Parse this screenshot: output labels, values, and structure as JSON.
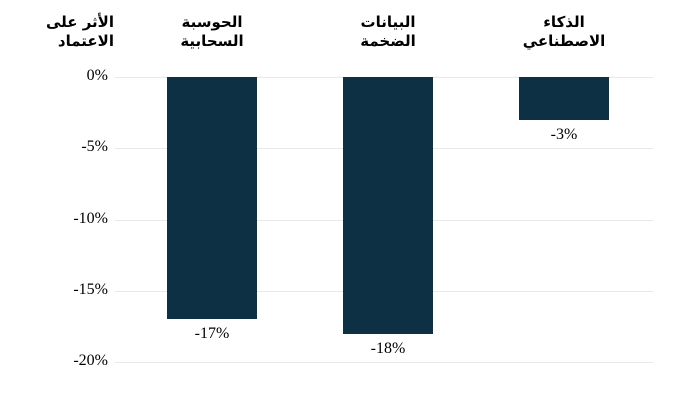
{
  "chart_data": {
    "type": "bar",
    "categories": [
      "الحوسبة السحابية",
      "البيانات الضخمة",
      "الذكاء الاصطناعي"
    ],
    "values": [
      -17,
      -18,
      -3
    ],
    "value_labels": [
      "-17%",
      "-18%",
      "-3%"
    ],
    "ylabel": "الأثر على الاعتماد",
    "ytick_values": [
      0,
      -5,
      -10,
      -15,
      -20
    ],
    "ytick_labels": [
      "0%",
      "-5%",
      "-10%",
      "-15%",
      "-20%"
    ],
    "ylim": [
      -20,
      0
    ],
    "grid": true,
    "legend": false,
    "bar_color": "#0e3044",
    "gridline_color": "#e8e8e8",
    "text_color": "#000000"
  }
}
